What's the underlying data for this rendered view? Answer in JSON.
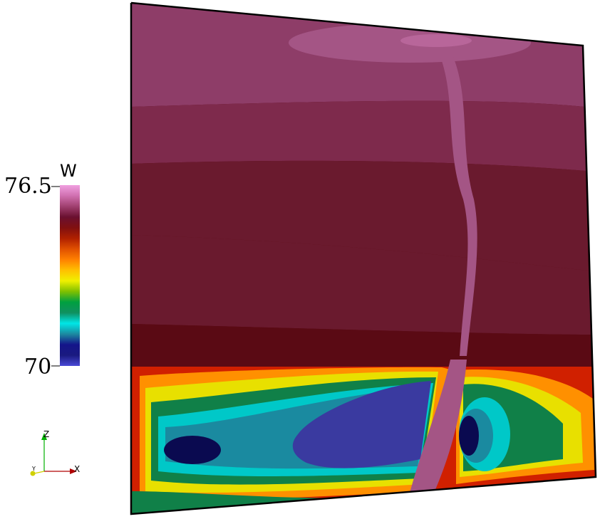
{
  "colorbar": {
    "title": "W",
    "max_label": "76.5",
    "min_label": "70",
    "range": [
      70,
      76.5
    ],
    "stops": [
      "#4a4ad6",
      "#1a1a80",
      "#14148a",
      "#1c8aa0",
      "#00e6e6",
      "#109060",
      "#00a040",
      "#80c000",
      "#f0f000",
      "#ffc000",
      "#ff8000",
      "#e05000",
      "#b02000",
      "#801010",
      "#6a1030",
      "#a04070",
      "#d070b0",
      "#f0a0e0"
    ]
  },
  "orientation_axes": {
    "z_label": "Z",
    "x_label": "X",
    "y_label": "Y",
    "z_color": "#00b000",
    "x_color": "#b00000",
    "y_color": "#d0d000"
  },
  "field_colors": {
    "pink_light": "#b8669a",
    "pink": "#a45585",
    "mauve": "#8e3d68",
    "plum": "#7e2a4c",
    "maroon": "#6a1a2e",
    "dark_maroon": "#5a0a14",
    "deep_blue": "#3a3aa0",
    "navy": "#0a0a50",
    "teal": "#1a8aa0",
    "cyan": "#00c8c8",
    "green": "#108048",
    "yellow": "#e8e000",
    "orange": "#ff9000",
    "red": "#d02000"
  }
}
